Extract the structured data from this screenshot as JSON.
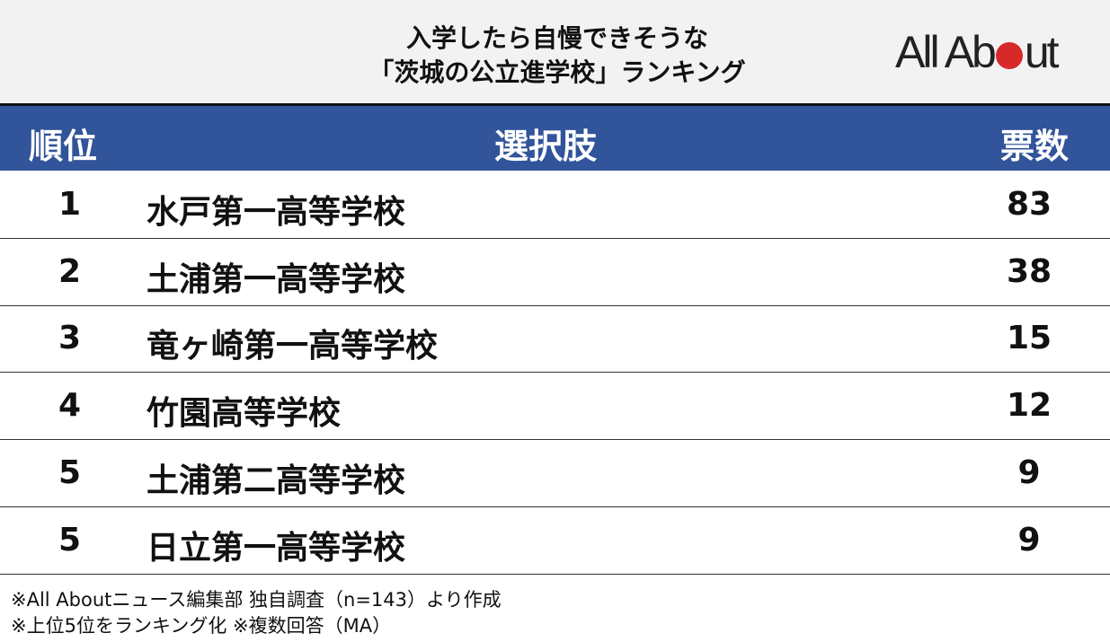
{
  "title_line1": "入学したら自慢できそうな",
  "title_line2": "「茨城の公立進学校」ランキング",
  "logo": "All About",
  "colors": {
    "header": "#31549a",
    "logo_dot": "#d7282a",
    "background_top": "#f2f2f2"
  },
  "chart_data": {
    "type": "table",
    "columns": [
      "順位",
      "選択肢",
      "票数"
    ],
    "rows": [
      {
        "rank": "1",
        "name": "水戸第一高等学校",
        "votes": "83"
      },
      {
        "rank": "2",
        "name": "土浦第一高等学校",
        "votes": "38"
      },
      {
        "rank": "3",
        "name": "竜ヶ崎第一高等学校",
        "votes": "15"
      },
      {
        "rank": "4",
        "name": "竹園高等学校",
        "votes": "12"
      },
      {
        "rank": "5",
        "name": "土浦第二高等学校",
        "votes": "9"
      },
      {
        "rank": "5",
        "name": "日立第一高等学校",
        "votes": "9"
      }
    ]
  },
  "footnotes": [
    "※All Aboutニュース編集部 独自調査（n=143）より作成",
    "※上位5位をランキング化  ※複数回答（MA）"
  ]
}
